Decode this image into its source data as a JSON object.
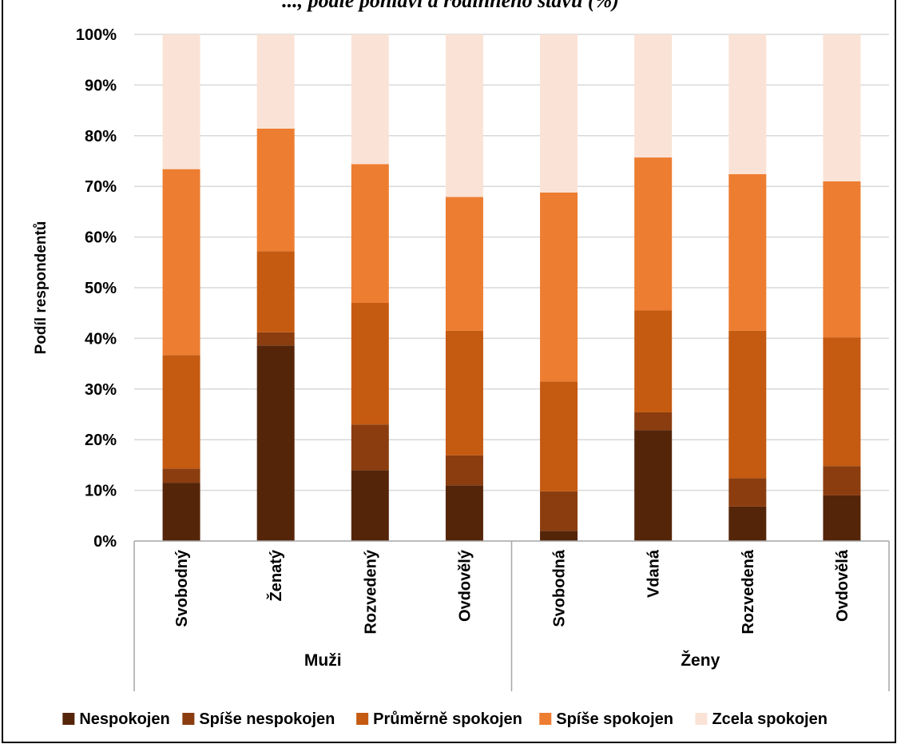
{
  "caption_fragment": "..., podle pohlaví a rodinného stavu (%)",
  "chart_data": {
    "type": "bar",
    "stacked": true,
    "ylabel": "Podíl respondentů",
    "ylim": [
      0,
      100
    ],
    "yticks": [
      "0%",
      "10%",
      "20%",
      "30%",
      "40%",
      "50%",
      "60%",
      "70%",
      "80%",
      "90%",
      "100%"
    ],
    "grid": true,
    "legend_position": "bottom",
    "groups": [
      {
        "label": "Muži",
        "categories": [
          "Svobodný",
          "Ženatý",
          "Rozvedený",
          "Ovdovělý"
        ]
      },
      {
        "label": "Ženy",
        "categories": [
          "Svobodná",
          "Vdaná",
          "Rozvedená",
          "Ovdovělá"
        ]
      }
    ],
    "categories": [
      "Svobodný",
      "Ženatý",
      "Rozvedený",
      "Ovdovělý",
      "Svobodná",
      "Vdaná",
      "Rozvedená",
      "Ovdovělá"
    ],
    "series": [
      {
        "name": "Nespokojen",
        "color": "#55250a",
        "values": [
          11.5,
          38.6,
          14.0,
          11.0,
          2.0,
          21.9,
          6.8,
          9.0
        ]
      },
      {
        "name": "Spíše nespokojen",
        "color": "#8b3d0f",
        "values": [
          2.8,
          2.6,
          9.0,
          5.9,
          7.8,
          3.5,
          5.6,
          5.8
        ]
      },
      {
        "name": "Průměrně spokojen",
        "color": "#c55a11",
        "values": [
          22.4,
          16.0,
          24.0,
          24.6,
          21.7,
          20.1,
          29.1,
          25.4
        ]
      },
      {
        "name": "Spíše spokojen",
        "color": "#ed7d31",
        "values": [
          36.7,
          24.2,
          27.4,
          26.4,
          37.3,
          30.2,
          30.9,
          30.8
        ]
      },
      {
        "name": "Zcela spokojen",
        "color": "#fae3d6",
        "values": [
          26.6,
          18.6,
          25.6,
          32.1,
          31.2,
          24.3,
          27.6,
          29.0
        ]
      }
    ]
  }
}
